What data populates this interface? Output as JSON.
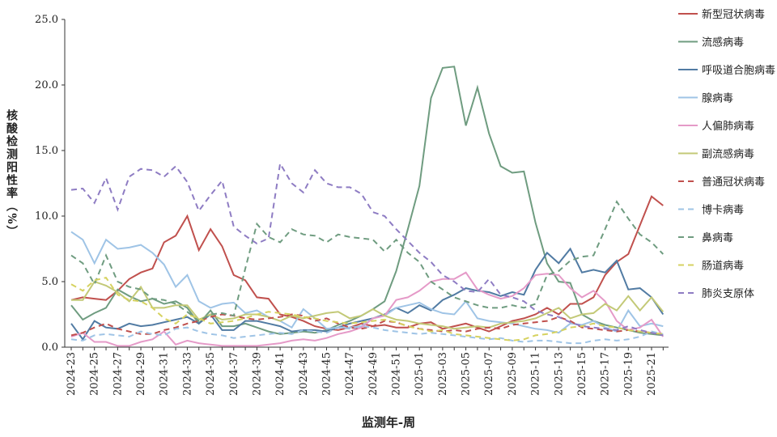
{
  "chart_data": {
    "type": "line",
    "ylabel": "核酸检测阳性率（%）",
    "xlabel": "监测年-周",
    "categories": [
      "2024-23",
      null,
      "2024-25",
      null,
      "2024-27",
      null,
      "2024-29",
      null,
      "2024-31",
      null,
      "2024-33",
      null,
      "2024-35",
      null,
      "2024-37",
      null,
      "2024-39",
      null,
      "2024-41",
      null,
      "2024-43",
      null,
      "2024-45",
      null,
      "2024-47",
      null,
      "2024-49",
      null,
      "2024-51",
      null,
      "2025-01",
      null,
      "2025-03",
      null,
      "2025-05",
      null,
      "2025-07",
      null,
      "2025-09",
      null,
      "2025-11",
      null,
      "2025-13",
      null,
      "2025-15",
      null,
      "2025-17",
      null,
      "2025-19",
      null,
      "2025-21",
      null
    ],
    "ylim": [
      0,
      25
    ],
    "yticks": [
      {
        "value": 0,
        "label": "0.0"
      },
      {
        "value": 5,
        "label": "5.0"
      },
      {
        "value": 10,
        "label": "10.0"
      },
      {
        "value": 15,
        "label": "15.0"
      },
      {
        "value": 20,
        "label": "20.0"
      },
      {
        "value": 25,
        "label": "25.0"
      }
    ],
    "series": [
      {
        "name": "新型冠状病毒",
        "color": "#c0504d",
        "dash": false,
        "values": [
          3.6,
          3.8,
          3.7,
          3.6,
          4.3,
          5.2,
          5.7,
          6.0,
          8.0,
          8.5,
          10.0,
          7.4,
          9.0,
          7.7,
          5.5,
          5.1,
          3.8,
          3.7,
          2.5,
          2.3,
          2.0,
          1.6,
          1.4,
          1.3,
          1.5,
          1.8,
          1.6,
          1.7,
          1.5,
          1.5,
          1.8,
          1.9,
          1.4,
          1.6,
          1.8,
          1.5,
          1.2,
          1.6,
          2.0,
          2.2,
          2.5,
          3.0,
          2.5,
          3.3,
          3.3,
          3.8,
          5.5,
          6.5,
          7.1,
          9.3,
          11.5,
          10.8
        ]
      },
      {
        "name": "流感病毒",
        "color": "#6f9c80",
        "dash": false,
        "values": [
          3.2,
          2.1,
          2.6,
          3.0,
          4.4,
          3.9,
          3.5,
          3.7,
          3.3,
          3.5,
          3.0,
          1.8,
          2.8,
          1.6,
          1.6,
          1.8,
          1.5,
          1.2,
          1.0,
          1.1,
          1.2,
          1.1,
          1.3,
          1.7,
          2.0,
          2.4,
          2.9,
          3.5,
          5.8,
          9.0,
          12.3,
          19.0,
          21.3,
          21.4,
          16.9,
          19.8,
          16.3,
          13.8,
          13.3,
          13.4,
          9.5,
          6.4,
          5.0,
          4.9,
          2.5,
          2.0,
          1.7,
          1.5,
          1.3,
          1.1,
          1.0,
          0.9
        ]
      },
      {
        "name": "呼吸道合胞病毒",
        "color": "#517ba3",
        "dash": false,
        "values": [
          1.8,
          0.6,
          2.0,
          1.5,
          1.4,
          1.8,
          1.6,
          1.7,
          1.9,
          2.1,
          2.3,
          1.8,
          2.5,
          1.3,
          1.3,
          2.0,
          2.0,
          1.8,
          1.6,
          1.2,
          1.3,
          1.3,
          1.2,
          1.5,
          1.8,
          2.0,
          2.2,
          2.5,
          3.0,
          2.6,
          3.2,
          2.8,
          3.6,
          4.0,
          4.5,
          4.3,
          4.2,
          3.9,
          4.2,
          4.0,
          5.9,
          7.2,
          6.4,
          7.5,
          5.7,
          5.9,
          5.7,
          6.6,
          4.4,
          4.5,
          3.8,
          2.5
        ]
      },
      {
        "name": "腺病毒",
        "color": "#9fc4e6",
        "dash": false,
        "values": [
          8.8,
          8.2,
          6.4,
          8.2,
          7.5,
          7.6,
          7.8,
          7.2,
          6.3,
          4.6,
          5.5,
          3.5,
          3.0,
          3.3,
          3.4,
          2.6,
          2.8,
          2.3,
          2.0,
          1.5,
          2.9,
          2.2,
          1.4,
          1.5,
          1.5,
          1.6,
          2.2,
          2.4,
          3.0,
          3.2,
          3.4,
          2.9,
          2.6,
          2.5,
          3.5,
          2.2,
          2.0,
          1.9,
          1.8,
          1.6,
          1.4,
          1.3,
          1.1,
          1.8,
          1.7,
          2.0,
          1.5,
          1.2,
          2.8,
          1.6,
          1.8,
          1.6
        ]
      },
      {
        "name": "人偏肺病毒",
        "color": "#e59ac8",
        "dash": false,
        "values": [
          0.8,
          1.1,
          0.4,
          0.4,
          0.1,
          0.1,
          0.4,
          0.6,
          1.2,
          0.2,
          0.5,
          0.3,
          0.2,
          0.1,
          0.1,
          0.1,
          0.1,
          0.2,
          0.3,
          0.5,
          0.6,
          0.5,
          0.7,
          1.0,
          1.2,
          1.5,
          2.2,
          2.4,
          3.6,
          3.8,
          4.3,
          5.0,
          5.2,
          5.2,
          5.7,
          4.4,
          4.0,
          3.7,
          3.9,
          4.5,
          5.5,
          5.6,
          5.5,
          4.5,
          3.8,
          4.3,
          3.5,
          2.0,
          1.3,
          1.5,
          2.1,
          0.8
        ]
      },
      {
        "name": "副流感病毒",
        "color": "#c3c977",
        "dash": false,
        "values": [
          3.6,
          3.6,
          5.0,
          4.7,
          4.2,
          3.5,
          4.6,
          3.0,
          3.0,
          3.2,
          3.2,
          2.1,
          2.5,
          2.1,
          2.2,
          2.5,
          2.5,
          2.3,
          2.0,
          2.4,
          2.2,
          2.4,
          2.6,
          2.7,
          2.2,
          2.4,
          2.9,
          2.4,
          2.1,
          2.0,
          1.8,
          1.7,
          1.6,
          1.4,
          1.5,
          1.6,
          1.5,
          1.8,
          1.9,
          2.0,
          2.2,
          2.6,
          3.0,
          2.2,
          2.5,
          2.6,
          3.3,
          2.8,
          3.9,
          2.8,
          3.8,
          2.7
        ]
      },
      {
        "name": "普通冠状病毒",
        "color": "#c0504d",
        "dash": true,
        "values": [
          0.9,
          1.1,
          1.5,
          1.8,
          1.4,
          1.2,
          1.0,
          1.0,
          1.3,
          1.5,
          1.8,
          2.0,
          2.3,
          2.5,
          2.4,
          2.2,
          2.1,
          2.2,
          2.3,
          2.5,
          2.4,
          2.0,
          2.2,
          1.8,
          1.5,
          1.4,
          1.6,
          2.0,
          1.9,
          1.6,
          1.4,
          1.3,
          1.2,
          1.3,
          1.2,
          1.4,
          1.5,
          1.4,
          1.7,
          1.8,
          1.9,
          2.0,
          2.3,
          2.0,
          1.5,
          1.4,
          1.3,
          1.2,
          1.3,
          1.2,
          1.1,
          1.0
        ]
      },
      {
        "name": "博卡病毒",
        "color": "#9fc4e6",
        "dash": true,
        "values": [
          0.6,
          0.5,
          0.9,
          1.0,
          0.9,
          0.8,
          1.2,
          1.0,
          0.9,
          1.4,
          1.5,
          1.2,
          1.0,
          0.9,
          0.7,
          0.8,
          0.9,
          1.0,
          1.1,
          1.0,
          1.3,
          1.2,
          1.1,
          1.5,
          1.4,
          1.6,
          1.5,
          1.3,
          1.2,
          1.1,
          1.0,
          1.1,
          1.0,
          0.9,
          0.8,
          0.7,
          0.6,
          0.7,
          0.5,
          0.4,
          0.5,
          0.5,
          0.4,
          0.3,
          0.3,
          0.5,
          0.6,
          0.5,
          0.6,
          0.8,
          1.2,
          1.0
        ]
      },
      {
        "name": "鼻病毒",
        "color": "#6f9c80",
        "dash": true,
        "values": [
          7.0,
          6.4,
          4.8,
          7.0,
          5.0,
          4.6,
          4.4,
          3.7,
          3.6,
          3.3,
          2.7,
          2.0,
          2.5,
          2.6,
          2.4,
          6.0,
          9.4,
          8.4,
          8.0,
          9.0,
          8.6,
          8.5,
          8.0,
          8.6,
          8.4,
          8.3,
          8.2,
          7.3,
          8.2,
          7.2,
          6.5,
          5.0,
          4.4,
          3.8,
          3.5,
          3.2,
          3.0,
          3.0,
          3.2,
          3.0,
          3.3,
          5.5,
          5.8,
          6.6,
          6.9,
          7.0,
          9.0,
          11.1,
          9.8,
          8.6,
          8.0,
          7.1
        ]
      },
      {
        "name": "肠道病毒",
        "color": "#d6d260",
        "dash": true,
        "values": [
          4.8,
          4.3,
          5.1,
          5.3,
          4.0,
          3.6,
          3.5,
          3.0,
          2.2,
          1.8,
          2.5,
          2.2,
          1.8,
          1.9,
          2.0,
          2.2,
          2.5,
          2.7,
          2.6,
          2.5,
          2.3,
          2.2,
          2.0,
          1.9,
          1.8,
          1.9,
          2.0,
          2.1,
          1.9,
          1.6,
          1.4,
          1.2,
          1.3,
          1.0,
          0.9,
          0.8,
          0.7,
          0.6,
          0.5,
          0.6,
          0.9,
          1.0,
          1.2,
          1.5,
          1.6,
          1.8,
          1.6,
          1.5,
          1.3,
          1.2,
          1.1,
          1.0
        ]
      },
      {
        "name": "肺炎支原体",
        "color": "#8e7cc3",
        "dash": true,
        "values": [
          12.0,
          12.1,
          11.0,
          12.9,
          10.5,
          13.0,
          13.6,
          13.5,
          13.0,
          13.8,
          12.6,
          10.4,
          11.6,
          12.7,
          9.2,
          8.5,
          7.9,
          8.3,
          14.0,
          12.5,
          11.8,
          13.5,
          12.5,
          12.2,
          12.2,
          11.7,
          10.3,
          10.0,
          9.0,
          8.1,
          7.2,
          6.5,
          5.5,
          5.0,
          4.3,
          4.2,
          5.2,
          4.0,
          3.8,
          3.5,
          2.8,
          2.5,
          2.3,
          1.9,
          1.6,
          1.5,
          1.4,
          1.3,
          1.6,
          1.3,
          1.1,
          0.9
        ]
      }
    ]
  }
}
